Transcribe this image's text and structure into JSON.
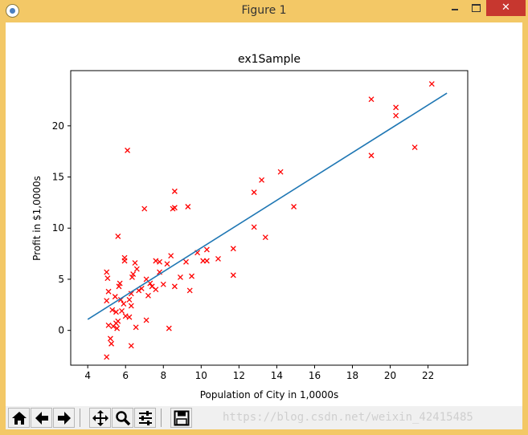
{
  "window": {
    "title": "Figure 1",
    "close_glyph": "✕"
  },
  "toolbar": {
    "buttons": [
      {
        "name": "home-icon"
      },
      {
        "name": "back-arrow-icon"
      },
      {
        "name": "forward-arrow-icon"
      },
      {
        "name": "pan-move-icon"
      },
      {
        "name": "zoom-magnifier-icon"
      },
      {
        "name": "subplots-config-icon"
      },
      {
        "name": "save-disk-icon"
      }
    ],
    "watermark": "https://blog.csdn.net/weixin_42415485"
  },
  "chart_data": {
    "type": "scatter",
    "title": "ex1Sample",
    "xlabel": "Population of City in 1,0000s",
    "ylabel": "Profit in $1,0000s",
    "xlim": [
      3.1,
      24.1
    ],
    "ylim": [
      -3.4,
      25.4
    ],
    "xticks": [
      4,
      6,
      8,
      10,
      12,
      14,
      16,
      18,
      20,
      22
    ],
    "yticks": [
      0,
      5,
      10,
      15,
      20
    ],
    "marker_color": "#ff0000",
    "line_color": "#1f77b4",
    "grid": false,
    "series": [
      {
        "type": "scatter",
        "marker": "x",
        "points": [
          [
            5.0,
            5.7
          ],
          [
            5.05,
            5.1
          ],
          [
            5.1,
            3.8
          ],
          [
            5.0,
            2.9
          ],
          [
            5.1,
            0.5
          ],
          [
            5.0,
            -2.6
          ],
          [
            5.2,
            -0.8
          ],
          [
            5.25,
            -1.3
          ],
          [
            5.3,
            2.0
          ],
          [
            5.35,
            0.4
          ],
          [
            5.45,
            3.3
          ],
          [
            5.5,
            1.8
          ],
          [
            5.5,
            0.7
          ],
          [
            5.55,
            0.2
          ],
          [
            5.6,
            9.2
          ],
          [
            5.65,
            4.3
          ],
          [
            5.7,
            4.6
          ],
          [
            5.6,
            0.9
          ],
          [
            5.75,
            3.0
          ],
          [
            5.8,
            1.9
          ],
          [
            5.9,
            2.6
          ],
          [
            5.95,
            7.1
          ],
          [
            5.95,
            6.8
          ],
          [
            6.0,
            1.4
          ],
          [
            6.1,
            17.6
          ],
          [
            6.2,
            3.0
          ],
          [
            6.2,
            1.3
          ],
          [
            6.3,
            2.4
          ],
          [
            6.35,
            5.2
          ],
          [
            6.4,
            5.5
          ],
          [
            6.5,
            6.6
          ],
          [
            6.6,
            6.0
          ],
          [
            6.55,
            0.3
          ],
          [
            6.3,
            -1.5
          ],
          [
            6.3,
            3.6
          ],
          [
            6.7,
            3.9
          ],
          [
            6.85,
            4.1
          ],
          [
            7.0,
            11.9
          ],
          [
            7.1,
            1.0
          ],
          [
            7.1,
            5.0
          ],
          [
            7.2,
            3.4
          ],
          [
            7.3,
            4.6
          ],
          [
            7.4,
            4.3
          ],
          [
            7.6,
            6.8
          ],
          [
            7.6,
            4.0
          ],
          [
            7.8,
            5.7
          ],
          [
            7.8,
            6.7
          ],
          [
            8.0,
            4.5
          ],
          [
            8.2,
            6.5
          ],
          [
            8.3,
            0.2
          ],
          [
            8.4,
            7.3
          ],
          [
            8.5,
            11.9
          ],
          [
            8.6,
            13.6
          ],
          [
            8.6,
            12.0
          ],
          [
            8.6,
            4.3
          ],
          [
            8.9,
            5.2
          ],
          [
            9.2,
            6.7
          ],
          [
            9.3,
            12.1
          ],
          [
            9.4,
            3.9
          ],
          [
            9.5,
            5.3
          ],
          [
            9.8,
            7.6
          ],
          [
            10.1,
            6.8
          ],
          [
            10.3,
            7.9
          ],
          [
            10.3,
            6.8
          ],
          [
            10.9,
            7.0
          ],
          [
            11.7,
            8.0
          ],
          [
            11.7,
            5.4
          ],
          [
            12.8,
            13.5
          ],
          [
            12.8,
            10.1
          ],
          [
            13.2,
            14.7
          ],
          [
            13.4,
            9.1
          ],
          [
            14.2,
            15.5
          ],
          [
            14.9,
            12.1
          ],
          [
            19.0,
            22.6
          ],
          [
            19.0,
            17.1
          ],
          [
            20.3,
            21.8
          ],
          [
            20.3,
            21.0
          ],
          [
            21.3,
            17.9
          ],
          [
            22.2,
            24.1
          ]
        ]
      },
      {
        "type": "line",
        "points": [
          [
            4.0,
            1.08
          ],
          [
            23.0,
            23.2
          ]
        ]
      }
    ]
  }
}
